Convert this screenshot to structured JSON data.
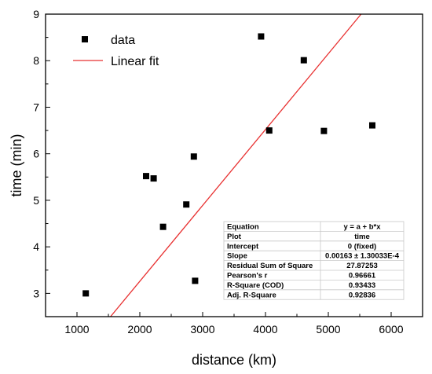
{
  "chart_data": {
    "type": "scatter",
    "xlabel": "distance (km)",
    "ylabel": "time (min)",
    "xlim": [
      500,
      6500
    ],
    "ylim": [
      2.5,
      9
    ],
    "x_ticks": [
      1000,
      2000,
      3000,
      4000,
      5000,
      6000
    ],
    "y_ticks": [
      3,
      4,
      5,
      6,
      7,
      8,
      9
    ],
    "series": [
      {
        "name": "data",
        "marker": "square",
        "color": "#000000",
        "points": [
          {
            "x": 1140,
            "y": 3.0
          },
          {
            "x": 2100,
            "y": 5.52
          },
          {
            "x": 2220,
            "y": 5.47
          },
          {
            "x": 2370,
            "y": 4.43
          },
          {
            "x": 2740,
            "y": 4.91
          },
          {
            "x": 2860,
            "y": 5.94
          },
          {
            "x": 2880,
            "y": 3.27
          },
          {
            "x": 3930,
            "y": 8.52
          },
          {
            "x": 4060,
            "y": 6.5
          },
          {
            "x": 4610,
            "y": 8.01
          },
          {
            "x": 4930,
            "y": 6.49
          },
          {
            "x": 5700,
            "y": 6.61
          }
        ]
      },
      {
        "name": "Linear fit",
        "color": "#e83030",
        "intercept": 0,
        "slope": 0.00163
      }
    ],
    "legend": {
      "position": "top-left"
    },
    "stats_table": {
      "position": "bottom-right",
      "rows": [
        {
          "label": "Equation",
          "value": "y = a + b*x"
        },
        {
          "label": "Plot",
          "value": "time"
        },
        {
          "label": "Intercept",
          "value": "0 (fixed)"
        },
        {
          "label": "Slope",
          "value": "0.00163 ± 1.30033E-4"
        },
        {
          "label": "Residual Sum of Square",
          "value": "27.87253"
        },
        {
          "label": "Pearson's r",
          "value": "0.96661"
        },
        {
          "label": "R-Square (COD)",
          "value": "0.93433"
        },
        {
          "label": "Adj. R-Square",
          "value": "0.92836"
        }
      ]
    }
  }
}
